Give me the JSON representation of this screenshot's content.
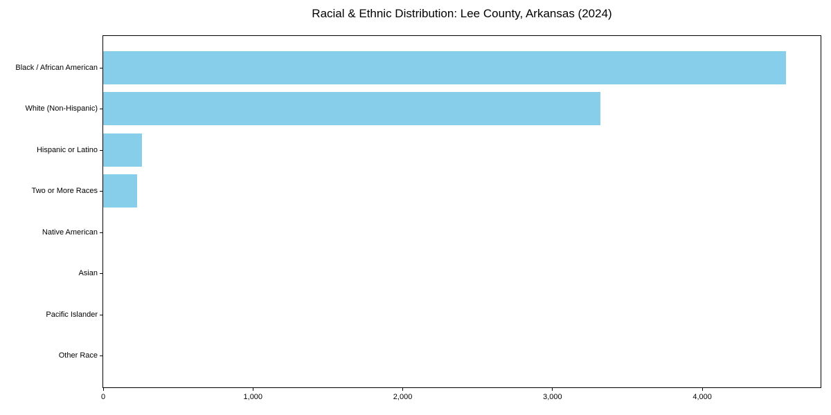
{
  "chart_data": {
    "type": "bar",
    "orientation": "horizontal",
    "title": "Racial & Ethnic Distribution: Lee County, Arkansas (2024)",
    "categories": [
      "Black / African American",
      "White (Non-Hispanic)",
      "Hispanic or Latino",
      "Two or More Races",
      "Native American",
      "Asian",
      "Pacific Islander",
      "Other Race"
    ],
    "values": [
      4560,
      3320,
      260,
      225,
      0,
      0,
      0,
      0
    ],
    "xlabel": "",
    "ylabel": "",
    "x_ticks": [
      0,
      1000,
      2000,
      3000,
      4000
    ],
    "x_tick_labels": [
      "0",
      "1,000",
      "2,000",
      "3,000",
      "4,000"
    ],
    "xlim": [
      0,
      4790
    ],
    "bar_color": "#87CEEB",
    "grid": false,
    "legend": false,
    "background_color": "#ffffff",
    "axis_color": "#000000"
  }
}
